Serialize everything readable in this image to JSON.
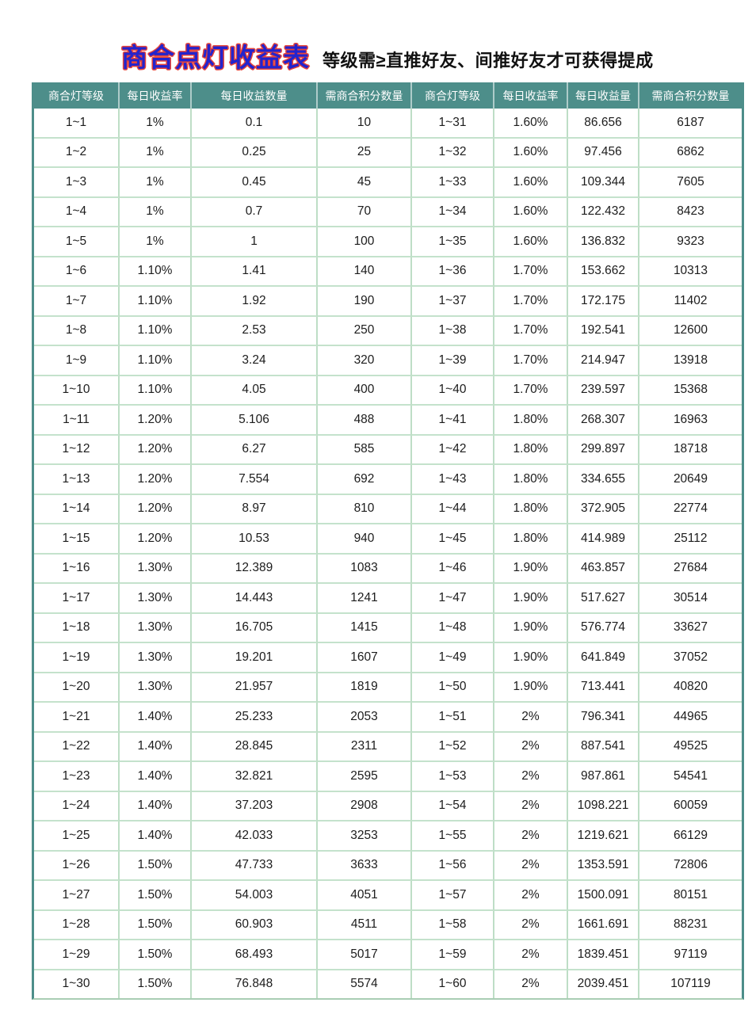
{
  "page": {
    "title": "商合点灯收益表",
    "subtitle": "等级需≥直推好友、间推好友才可获得提成"
  },
  "colors": {
    "header_bg": "#4d8e8a",
    "grid_border": "#bedec6",
    "title_blue": "#2323cd",
    "title_outline_red": "#e8453a"
  },
  "table": {
    "headers": [
      "商合灯等级",
      "每日收益率",
      "每日收益数量",
      "需商合积分数量",
      "商合灯等级",
      "每日收益率",
      "每日收益量",
      "需商合积分数量"
    ],
    "rows": [
      [
        "1~1",
        "1%",
        "0.1",
        "10",
        "1~31",
        "1.60%",
        "86.656",
        "6187"
      ],
      [
        "1~2",
        "1%",
        "0.25",
        "25",
        "1~32",
        "1.60%",
        "97.456",
        "6862"
      ],
      [
        "1~3",
        "1%",
        "0.45",
        "45",
        "1~33",
        "1.60%",
        "109.344",
        "7605"
      ],
      [
        "1~4",
        "1%",
        "0.7",
        "70",
        "1~34",
        "1.60%",
        "122.432",
        "8423"
      ],
      [
        "1~5",
        "1%",
        "1",
        "100",
        "1~35",
        "1.60%",
        "136.832",
        "9323"
      ],
      [
        "1~6",
        "1.10%",
        "1.41",
        "140",
        "1~36",
        "1.70%",
        "153.662",
        "10313"
      ],
      [
        "1~7",
        "1.10%",
        "1.92",
        "190",
        "1~37",
        "1.70%",
        "172.175",
        "11402"
      ],
      [
        "1~8",
        "1.10%",
        "2.53",
        "250",
        "1~38",
        "1.70%",
        "192.541",
        "12600"
      ],
      [
        "1~9",
        "1.10%",
        "3.24",
        "320",
        "1~39",
        "1.70%",
        "214.947",
        "13918"
      ],
      [
        "1~10",
        "1.10%",
        "4.05",
        "400",
        "1~40",
        "1.70%",
        "239.597",
        "15368"
      ],
      [
        "1~11",
        "1.20%",
        "5.106",
        "488",
        "1~41",
        "1.80%",
        "268.307",
        "16963"
      ],
      [
        "1~12",
        "1.20%",
        "6.27",
        "585",
        "1~42",
        "1.80%",
        "299.897",
        "18718"
      ],
      [
        "1~13",
        "1.20%",
        "7.554",
        "692",
        "1~43",
        "1.80%",
        "334.655",
        "20649"
      ],
      [
        "1~14",
        "1.20%",
        "8.97",
        "810",
        "1~44",
        "1.80%",
        "372.905",
        "22774"
      ],
      [
        "1~15",
        "1.20%",
        "10.53",
        "940",
        "1~45",
        "1.80%",
        "414.989",
        "25112"
      ],
      [
        "1~16",
        "1.30%",
        "12.389",
        "1083",
        "1~46",
        "1.90%",
        "463.857",
        "27684"
      ],
      [
        "1~17",
        "1.30%",
        "14.443",
        "1241",
        "1~47",
        "1.90%",
        "517.627",
        "30514"
      ],
      [
        "1~18",
        "1.30%",
        "16.705",
        "1415",
        "1~48",
        "1.90%",
        "576.774",
        "33627"
      ],
      [
        "1~19",
        "1.30%",
        "19.201",
        "1607",
        "1~49",
        "1.90%",
        "641.849",
        "37052"
      ],
      [
        "1~20",
        "1.30%",
        "21.957",
        "1819",
        "1~50",
        "1.90%",
        "713.441",
        "40820"
      ],
      [
        "1~21",
        "1.40%",
        "25.233",
        "2053",
        "1~51",
        "2%",
        "796.341",
        "44965"
      ],
      [
        "1~22",
        "1.40%",
        "28.845",
        "2311",
        "1~52",
        "2%",
        "887.541",
        "49525"
      ],
      [
        "1~23",
        "1.40%",
        "32.821",
        "2595",
        "1~53",
        "2%",
        "987.861",
        "54541"
      ],
      [
        "1~24",
        "1.40%",
        "37.203",
        "2908",
        "1~54",
        "2%",
        "1098.221",
        "60059"
      ],
      [
        "1~25",
        "1.40%",
        "42.033",
        "3253",
        "1~55",
        "2%",
        "1219.621",
        "66129"
      ],
      [
        "1~26",
        "1.50%",
        "47.733",
        "3633",
        "1~56",
        "2%",
        "1353.591",
        "72806"
      ],
      [
        "1~27",
        "1.50%",
        "54.003",
        "4051",
        "1~57",
        "2%",
        "1500.091",
        "80151"
      ],
      [
        "1~28",
        "1.50%",
        "60.903",
        "4511",
        "1~58",
        "2%",
        "1661.691",
        "88231"
      ],
      [
        "1~29",
        "1.50%",
        "68.493",
        "5017",
        "1~59",
        "2%",
        "1839.451",
        "97119"
      ],
      [
        "1~30",
        "1.50%",
        "76.848",
        "5574",
        "1~60",
        "2%",
        "2039.451",
        "107119"
      ]
    ]
  }
}
